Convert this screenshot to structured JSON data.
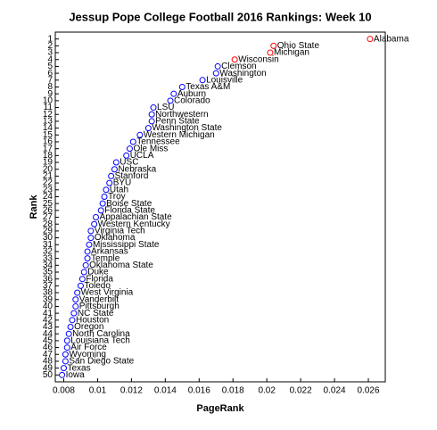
{
  "chart_data": {
    "type": "scatter",
    "title": "Jessup Pope College Football 2016 Rankings: Week 10",
    "x_label": "PageRank",
    "y_label": "Rank",
    "xlim": [
      0.0075,
      0.027
    ],
    "ylim": [
      0,
      51
    ],
    "y_inverted": true,
    "xticks": [
      0.008,
      0.01,
      0.012,
      0.014,
      0.016,
      0.018,
      0.02,
      0.022,
      0.024,
      0.026
    ],
    "yticks": [
      1,
      2,
      3,
      4,
      5,
      6,
      7,
      8,
      9,
      10,
      11,
      12,
      13,
      14,
      15,
      16,
      17,
      18,
      19,
      20,
      21,
      22,
      23,
      24,
      25,
      26,
      27,
      28,
      29,
      30,
      31,
      32,
      33,
      34,
      35,
      36,
      37,
      38,
      39,
      40,
      41,
      42,
      43,
      44,
      45,
      46,
      47,
      48,
      49,
      50
    ],
    "grid": false,
    "series": [
      {
        "x": [
          0.0261,
          0.0204,
          0.0202,
          0.0181,
          0.0171,
          0.017,
          0.0162,
          0.015,
          0.0145,
          0.0143,
          0.0133,
          0.0132,
          0.0132,
          0.013,
          0.0125,
          0.0121,
          0.0119,
          0.0117,
          0.0111,
          0.011,
          0.0108,
          0.0107,
          0.0105,
          0.0104,
          0.0103,
          0.0102,
          0.0099,
          0.0098,
          0.0096,
          0.0096,
          0.0095,
          0.0094,
          0.0094,
          0.0093,
          0.0092,
          0.0091,
          0.009,
          0.0088,
          0.0087,
          0.0087,
          0.0086,
          0.0085,
          0.0084,
          0.0083,
          0.0082,
          0.0082,
          0.0081,
          0.0081,
          0.008,
          0.0079
        ],
        "values": [
          1,
          2,
          3,
          4,
          5,
          6,
          7,
          8,
          9,
          10,
          11,
          12,
          13,
          14,
          15,
          16,
          17,
          18,
          19,
          20,
          21,
          22,
          23,
          24,
          25,
          26,
          27,
          28,
          29,
          30,
          31,
          32,
          33,
          34,
          35,
          36,
          37,
          38,
          39,
          40,
          41,
          42,
          43,
          44,
          45,
          46,
          47,
          48,
          49,
          50
        ],
        "point_labels": [
          "Alabama",
          "Ohio State",
          "Michigan",
          "Wisconsin",
          "Clemson",
          "Washington",
          "Louisville",
          "Texas A&M",
          "Auburn",
          "Colorado",
          "LSU",
          "Northwestern",
          "Penn State",
          "Washington State",
          "Western Michigan",
          "Tennessee",
          "Ole Miss",
          "UCLA",
          "USC",
          "Nebraska",
          "Stanford",
          "BYU",
          "Utah",
          "Troy",
          "Boise State",
          "Florida State",
          "Appalachian State",
          "Western Kentucky",
          "Virginia Tech",
          "Oklahoma",
          "Mississippi State",
          "Arkansas",
          "Temple",
          "Oklahoma State",
          "Duke",
          "Florida",
          "Toledo",
          "West Virginia",
          "Vanderbilt",
          "Pittsburgh",
          "NC State",
          "Houston",
          "Oregon",
          "North Carolina",
          "Louisiana Tech",
          "Air Force",
          "Wyoming",
          "San Diego State",
          "Texas",
          "Iowa"
        ],
        "point_colors": [
          "#ff0000",
          "#ff0000",
          "#ff0000",
          "#ff0000",
          "#0000ff",
          "#0000ff",
          "#0000ff",
          "#0000ff",
          "#0000ff",
          "#0000ff",
          "#0000ff",
          "#0000ff",
          "#0000ff",
          "#0000ff",
          "#0000ff",
          "#0000ff",
          "#0000ff",
          "#0000ff",
          "#0000ff",
          "#0000ff",
          "#0000ff",
          "#0000ff",
          "#0000ff",
          "#0000ff",
          "#0000ff",
          "#0000ff",
          "#0000ff",
          "#0000ff",
          "#0000ff",
          "#0000ff",
          "#0000ff",
          "#0000ff",
          "#0000ff",
          "#0000ff",
          "#0000ff",
          "#0000ff",
          "#0000ff",
          "#0000ff",
          "#0000ff",
          "#0000ff",
          "#0000ff",
          "#0000ff",
          "#0000ff",
          "#0000ff",
          "#0000ff",
          "#0000ff",
          "#0000ff",
          "#0000ff",
          "#0000ff",
          "#0000ff"
        ]
      }
    ]
  }
}
